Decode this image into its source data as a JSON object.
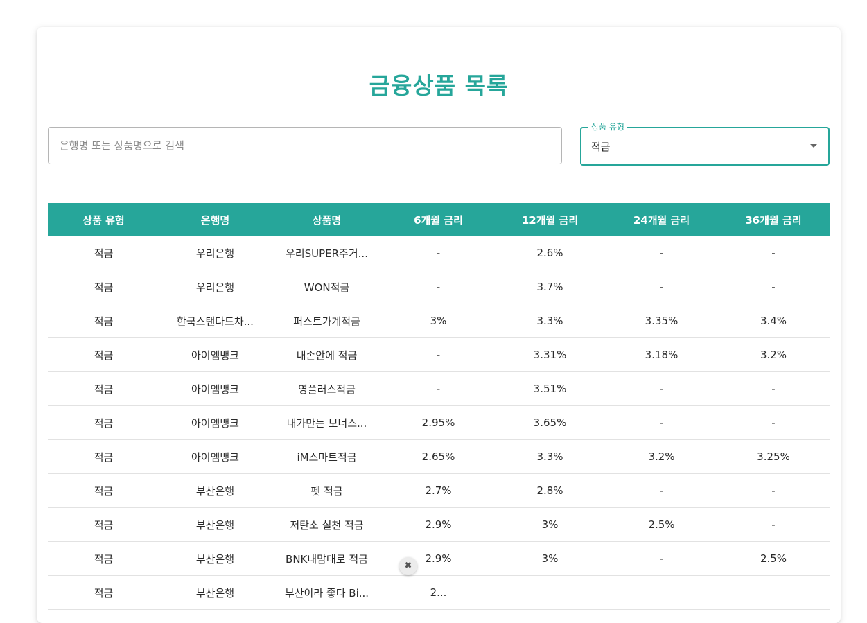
{
  "page": {
    "title": "금융상품 목록"
  },
  "search": {
    "placeholder": "은행명 또는 상품명으로 검색",
    "value": ""
  },
  "filter": {
    "label": "상품 유형",
    "selected": "적금"
  },
  "table": {
    "headers": [
      "상품 유형",
      "은행명",
      "상품명",
      "6개월 금리",
      "12개월 금리",
      "24개월 금리",
      "36개월 금리"
    ],
    "rows": [
      [
        "적금",
        "우리은행",
        "우리SUPER주거...",
        "-",
        "2.6%",
        "-",
        "-"
      ],
      [
        "적금",
        "우리은행",
        "WON적금",
        "-",
        "3.7%",
        "-",
        "-"
      ],
      [
        "적금",
        "한국스탠다드차...",
        "퍼스트가계적금",
        "3%",
        "3.3%",
        "3.35%",
        "3.4%"
      ],
      [
        "적금",
        "아이엠뱅크",
        "내손안에 적금",
        "-",
        "3.31%",
        "3.18%",
        "3.2%"
      ],
      [
        "적금",
        "아이엠뱅크",
        "영플러스적금",
        "-",
        "3.51%",
        "-",
        "-"
      ],
      [
        "적금",
        "아이엠뱅크",
        "내가만든 보너스...",
        "2.95%",
        "3.65%",
        "-",
        "-"
      ],
      [
        "적금",
        "아이엠뱅크",
        "iM스마트적금",
        "2.65%",
        "3.3%",
        "3.2%",
        "3.25%"
      ],
      [
        "적금",
        "부산은행",
        "펫 적금",
        "2.7%",
        "2.8%",
        "-",
        "-"
      ],
      [
        "적금",
        "부산은행",
        "저탄소 실천 적금",
        "2.9%",
        "3%",
        "2.5%",
        "-"
      ],
      [
        "적금",
        "부산은행",
        "BNK내맘대로 적금",
        "2.9%",
        "3%",
        "-",
        "2.5%"
      ],
      [
        "적금",
        "부산은행",
        "부산이라 좋다 Bi...",
        "2...",
        "",
        "",
        ""
      ]
    ]
  },
  "overlay": {
    "chip_glyph": "✖",
    "chip_icon": "close-icon"
  },
  "colors": {
    "accent": "#26a69a",
    "header_text": "#ffffff",
    "row_border": "#e2e2e2"
  }
}
